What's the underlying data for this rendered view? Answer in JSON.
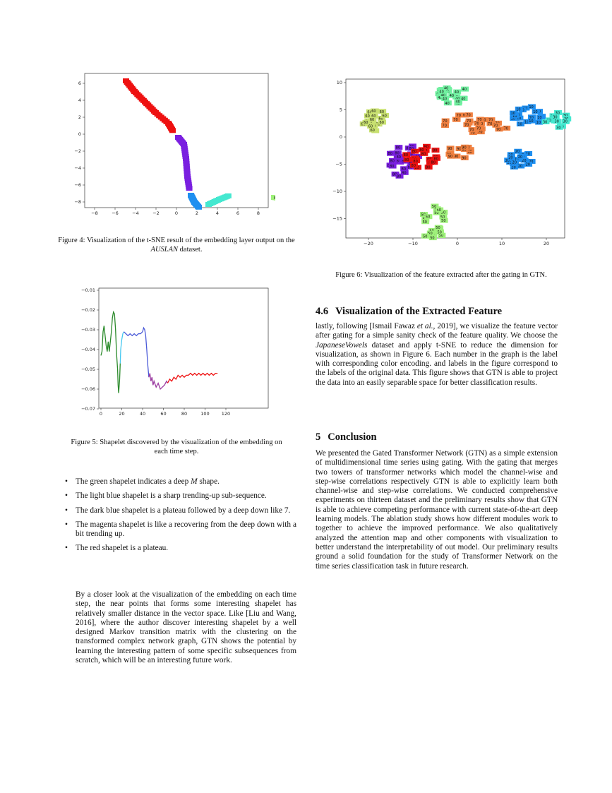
{
  "fig4": {
    "caption_a": "Figure 4: Visualization of the t-SNE result of the embedding layer output on the ",
    "caption_em": "AUSLAN",
    "caption_b": " dataset.",
    "x_ticks": [
      "−8",
      "−6",
      "−4",
      "−2",
      "0",
      "2",
      "4",
      "6",
      "8"
    ],
    "y_ticks": [
      "6",
      "4",
      "2",
      "0",
      "−2",
      "−4",
      "−6",
      "−8"
    ],
    "point_labels": [
      "80",
      "80"
    ]
  },
  "fig5": {
    "caption": "Figure 5: Shapelet discovered by the visualization of the embedding on each time step.",
    "x_ticks": [
      "0",
      "20",
      "40",
      "60",
      "80",
      "100",
      "120"
    ],
    "y_ticks": [
      "−0.01",
      "−0.02",
      "−0.03",
      "−0.04",
      "−0.05",
      "−0.06",
      "−0.07"
    ]
  },
  "fig6": {
    "caption": "Figure 6: Visualization of the feature extracted after the gating in GTN.",
    "x_ticks": [
      "−20",
      "−10",
      "0",
      "10",
      "20"
    ],
    "y_ticks": [
      "10",
      "5",
      "0",
      "−5",
      "−10",
      "−15"
    ],
    "point_labels": [
      "40",
      "60",
      "70",
      "10",
      "30",
      "20",
      "50",
      "80",
      "90"
    ]
  },
  "bullets": [
    {
      "a": "The green shapelet indicates a deep ",
      "em": "M",
      "b": " shape."
    },
    {
      "a": "The light blue shapelet is a sharp trending-up sub-sequence.",
      "em": "",
      "b": ""
    },
    {
      "a": "The dark blue shapelet is a plateau followed by a deep down like 7.",
      "em": "",
      "b": ""
    },
    {
      "a": "The magenta shapelet is like a recovering from the deep down with a bit trending up.",
      "em": "",
      "b": ""
    },
    {
      "a": "The red shapelet is a plateau.",
      "em": "",
      "b": ""
    }
  ],
  "left_paragraph": "By a closer look at the visualization of the embedding on each time step, the near points that forms some interesting shapelet has relatively smaller distance in the vector space. Like [Liu and Wang, 2016], where the author discover interesting shapelet by a well designed Markov transition matrix with the clustering on the transformed complex network graph, GTN shows the potential by learning the interesting pattern of some specific subsequences from scratch, which will be an interesting future work.",
  "section46": {
    "number": "4.6",
    "title": "Visualization of the Extracted Feature",
    "p_a": "lastly, following [Ismail Fawaz ",
    "p_em1": "et al.",
    "p_b": ", 2019], we visualize the feature vector after gating for a simple sanity check of the feature quality. We choose the ",
    "p_em2": "JapaneseVowels",
    "p_c": " dataset and apply t-SNE to reduce the dimension for visualization, as shown in Figure 6. Each number in the graph is the label with corresponding color encoding. and labels in the figure correspond to the labels of the original data. This figure shows that GTN is able to project the data into an easily separable space for better classification results."
  },
  "section5": {
    "number": "5",
    "title": "Conclusion",
    "text": "We presented the Gated Transformer Network (GTN) as a simple extension of multidimensional time series using gating. With the gating that merges two towers of transformer networks which model the channel-wise and step-wise correlations respectively GTN is able to explicitly learn both channel-wise and step-wise correlations. We conducted comprehensive experiments on thirteen dataset and the preliminary results show that GTN is able to achieve competing performance with current state-of-the-art deep learning models. The ablation study shows how different modules work to together to achieve the improved performance. We also qualitatively analyzed the attention map and other components with visualization to better understand the interpretability of out model. Our preliminary results ground a solid foundation for the study of Transformer Network on the time series classification task in future research."
  },
  "colors": {
    "red": "#ee1111",
    "purple": "#7a1fe0",
    "blue": "#1f8ff0",
    "cyan": "#44e8d0",
    "lightgreen": "#9ef07a",
    "green": "#2a8a2a",
    "lightblue": "#46c8f0",
    "darkblue": "#4a5ad8",
    "magenta": "#9a3aa0",
    "orange": "#f08040",
    "yellowgreen": "#c8e070",
    "lime": "#70f0a0"
  }
}
